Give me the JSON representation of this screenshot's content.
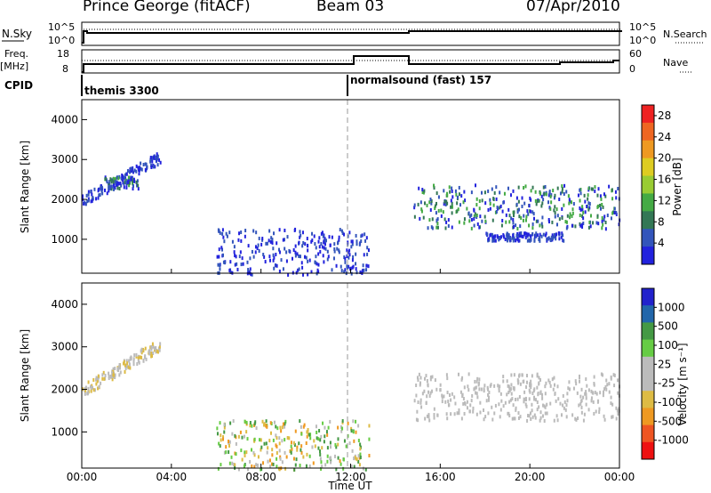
{
  "header": {
    "station": "Prince George (fitACF)",
    "beam": "Beam 03",
    "date": "07/Apr/2010"
  },
  "strip_panels": {
    "nsky": {
      "label": "N.Sky",
      "ticks": [
        "10^5",
        "10^0"
      ],
      "right_ticks": [
        "10^5",
        "10^0"
      ],
      "right_label": "N.Search"
    },
    "freq": {
      "label_line1": "Freq.",
      "label_line2": "[MHz]",
      "ticks": [
        "18",
        "8"
      ],
      "right_ticks": [
        "60",
        "0"
      ],
      "right_label": "Nave"
    },
    "cpid": {
      "label": "CPID",
      "programs": [
        "themis 3300",
        "normalsound (fast) 157"
      ]
    }
  },
  "colors": {
    "power": [
      "#2222dd",
      "#3355bb",
      "#337755",
      "#44aa44",
      "#99cc33",
      "#ddcc22",
      "#ee9922",
      "#ee6622",
      "#ee2222"
    ],
    "velocity": [
      "#ee1111",
      "#ee5522",
      "#ee9922",
      "#ddbb44",
      "#bbbbbb",
      "#bbbbbb",
      "#66cc44",
      "#449944",
      "#2266aa",
      "#2222cc"
    ]
  },
  "chart_data": [
    {
      "type": "heatmap",
      "title": "",
      "xlabel": "Time UT",
      "ylabel": "Slant Range [km]",
      "x_ticks": [
        "00:00",
        "04:00",
        "08:00",
        "12:00",
        "16:00",
        "20:00",
        "00:00"
      ],
      "xlim_hours": [
        0,
        24
      ],
      "ylim": [
        150,
        4500
      ],
      "y_ticks": [
        "1000",
        "2000",
        "3000",
        "4000"
      ],
      "colorbar": {
        "label": "Power [dB]",
        "ticks": [
          "4",
          "8",
          "12",
          "16",
          "20",
          "24",
          "28"
        ],
        "range": [
          0,
          30
        ]
      },
      "regions": [
        {
          "t": [
            0.0,
            3.5
          ],
          "range": [
            1900,
            3300
          ],
          "level": "low"
        },
        {
          "t": [
            1.0,
            2.5
          ],
          "range": [
            2300,
            2600
          ],
          "level": "mid"
        },
        {
          "t": [
            6.0,
            12.8
          ],
          "range": [
            150,
            1300
          ],
          "level": "low"
        },
        {
          "t": [
            14.8,
            24.0
          ],
          "range": [
            1300,
            2400
          ],
          "level": "mid"
        },
        {
          "t": [
            18.0,
            21.5
          ],
          "range": [
            1000,
            1200
          ],
          "level": "low"
        }
      ]
    },
    {
      "type": "heatmap",
      "title": "",
      "xlabel": "Time UT",
      "ylabel": "Slant Range [km]",
      "x_ticks": [
        "00:00",
        "04:00",
        "08:00",
        "12:00",
        "16:00",
        "20:00",
        "00:00"
      ],
      "xlim_hours": [
        0,
        24
      ],
      "ylim": [
        150,
        4500
      ],
      "y_ticks": [
        "1000",
        "2000",
        "3000",
        "4000"
      ],
      "colorbar": {
        "label": "Velocity [m s⁻¹]",
        "ticks": [
          "1000",
          "500",
          "100",
          "25",
          "-25",
          "-100",
          "-500",
          "-1000"
        ],
        "range": [
          -1000,
          1000
        ]
      },
      "regions": [
        {
          "t": [
            0.0,
            3.5
          ],
          "range": [
            1900,
            3300
          ],
          "level": "slightly negative"
        },
        {
          "t": [
            6.0,
            12.8
          ],
          "range": [
            150,
            1300
          ],
          "level": "mixed"
        },
        {
          "t": [
            14.8,
            24.0
          ],
          "range": [
            1300,
            2400
          ],
          "level": "near zero"
        }
      ]
    }
  ]
}
